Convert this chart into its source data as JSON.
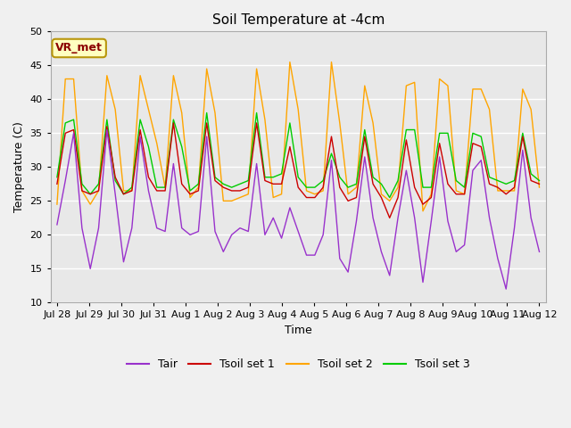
{
  "title": "Soil Temperature at -4cm",
  "xlabel": "Time",
  "ylabel": "Temperature (C)",
  "ylim": [
    10,
    50
  ],
  "background_color": "#f0f0f0",
  "plot_bg_color": "#e8e8e8",
  "grid_color": "#ffffff",
  "annotation_text": "VR_met",
  "annotation_color": "#8B0000",
  "annotation_bg": "#ffffc0",
  "annotation_border": "#b8960c",
  "tick_labels": [
    "Jul 28",
    "Jul 29",
    "Jul 30",
    "Jul 31",
    "Aug 1",
    "Aug 2",
    "Aug 3",
    "Aug 4",
    "Aug 5",
    "Aug 6",
    "Aug 7",
    "Aug 8",
    "Aug 9",
    "Aug 10",
    "Aug 11",
    "Aug 12"
  ],
  "legend_labels": [
    "Tair",
    "Tsoil set 1",
    "Tsoil set 2",
    "Tsoil set 3"
  ],
  "colors": {
    "Tair": "#9932CC",
    "Tsoil_set1": "#CC0000",
    "Tsoil_set2": "#FFA500",
    "Tsoil_set3": "#00CC00"
  },
  "tair": [
    21.5,
    28.0,
    35.0,
    21.0,
    15.0,
    21.0,
    35.5,
    26.0,
    16.0,
    21.0,
    34.5,
    26.5,
    21.0,
    20.5,
    30.5,
    21.0,
    20.0,
    20.5,
    34.5,
    20.5,
    17.5,
    20.0,
    21.0,
    20.5,
    30.5,
    20.0,
    22.5,
    19.5,
    24.0,
    20.5,
    17.0,
    17.0,
    20.0,
    31.0,
    16.5,
    14.5,
    22.0,
    31.5,
    22.5,
    17.5,
    14.0,
    22.5,
    29.5,
    22.5,
    13.0,
    22.0,
    31.5,
    22.0,
    17.5,
    18.5,
    29.5,
    31.0,
    22.5,
    16.5,
    12.0,
    21.0,
    32.5,
    22.5,
    17.5
  ],
  "tsoil1": [
    27.5,
    35.0,
    35.5,
    26.5,
    26.0,
    26.5,
    36.0,
    28.5,
    26.0,
    26.5,
    35.5,
    28.5,
    26.5,
    26.5,
    36.5,
    27.5,
    26.0,
    26.5,
    36.5,
    28.0,
    27.0,
    26.5,
    26.5,
    27.0,
    36.5,
    28.0,
    27.5,
    27.5,
    33.0,
    27.0,
    25.5,
    25.5,
    27.0,
    34.5,
    27.0,
    25.0,
    25.5,
    34.5,
    27.5,
    25.5,
    22.5,
    25.5,
    34.0,
    27.0,
    24.5,
    25.5,
    33.5,
    27.5,
    26.0,
    26.0,
    33.5,
    33.0,
    27.5,
    27.0,
    26.0,
    27.0,
    34.5,
    28.0,
    27.5
  ],
  "tsoil2": [
    24.5,
    43.0,
    43.0,
    26.5,
    24.5,
    26.5,
    43.5,
    38.5,
    26.5,
    26.5,
    43.5,
    38.5,
    33.5,
    27.0,
    43.5,
    38.0,
    25.5,
    27.0,
    44.5,
    38.0,
    25.0,
    25.0,
    25.5,
    26.0,
    44.5,
    37.0,
    25.5,
    26.0,
    45.5,
    38.5,
    26.5,
    26.0,
    26.5,
    45.5,
    36.5,
    26.0,
    27.0,
    42.0,
    36.5,
    26.0,
    25.0,
    27.0,
    42.0,
    42.5,
    23.5,
    26.0,
    43.0,
    42.0,
    26.5,
    26.0,
    41.5,
    41.5,
    38.5,
    26.5,
    26.5,
    26.5,
    41.5,
    38.5,
    27.0
  ],
  "tsoil3": [
    28.5,
    36.5,
    37.0,
    27.5,
    26.0,
    27.5,
    37.0,
    28.0,
    26.0,
    27.0,
    37.0,
    33.0,
    27.0,
    27.0,
    37.0,
    33.0,
    26.5,
    27.5,
    38.0,
    28.5,
    27.5,
    27.0,
    27.5,
    28.0,
    38.0,
    28.5,
    28.5,
    29.0,
    36.5,
    28.5,
    27.0,
    27.0,
    28.0,
    32.0,
    28.5,
    27.0,
    27.5,
    35.5,
    28.5,
    27.5,
    25.5,
    28.0,
    35.5,
    35.5,
    27.0,
    27.0,
    35.0,
    35.0,
    28.0,
    27.0,
    35.0,
    34.5,
    28.5,
    28.0,
    27.5,
    28.0,
    35.0,
    29.0,
    28.0
  ]
}
